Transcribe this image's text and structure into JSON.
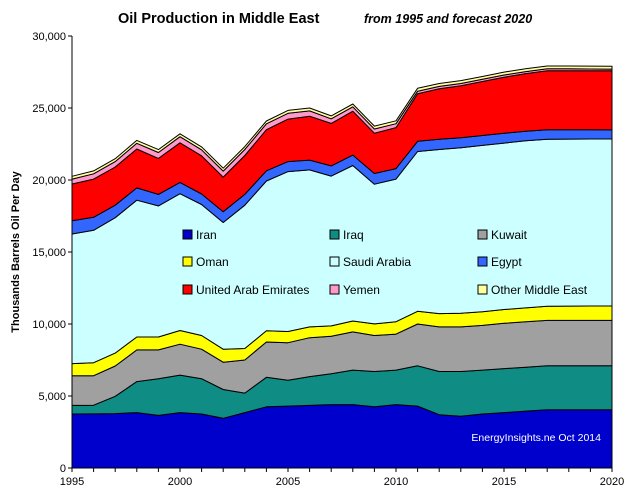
{
  "chart_data": {
    "type": "area",
    "stacked": true,
    "title": "Oil Production  in  Middle  East",
    "subtitle": "from 1995 and forecast 2020",
    "ylabel": "Thousands  Barrels Oil Per Day",
    "xlabel": "",
    "ylim": [
      0,
      30000
    ],
    "xlim": [
      1995,
      2020
    ],
    "yticks": [
      0,
      5000,
      10000,
      15000,
      20000,
      25000,
      30000
    ],
    "ytick_labels": [
      "0",
      "5,000",
      "10,000",
      "15,000",
      "20,000",
      "25,000",
      "30,000"
    ],
    "xticks": [
      1995,
      2000,
      2005,
      2010,
      2015,
      2020
    ],
    "xtick_labels": [
      "1995",
      "2000",
      "2005",
      "2010",
      "2015",
      "2020"
    ],
    "grid": false,
    "legend_position": "inside-center",
    "annotation": "EnergyInsights.ne Oct 2014",
    "x": [
      1995,
      1996,
      1997,
      1998,
      1999,
      2000,
      2001,
      2002,
      2003,
      2004,
      2005,
      2006,
      2007,
      2008,
      2009,
      2010,
      2011,
      2012,
      2013,
      2014,
      2015,
      2016,
      2017,
      2018,
      2019,
      2020
    ],
    "series": [
      {
        "name": "Iran",
        "color": "#0000cc",
        "values": [
          3750,
          3760,
          3780,
          3850,
          3650,
          3850,
          3750,
          3450,
          3850,
          4250,
          4300,
          4350,
          4400,
          4400,
          4250,
          4400,
          4300,
          3700,
          3600,
          3750,
          3850,
          3950,
          4050,
          4050,
          4050,
          4050
        ]
      },
      {
        "name": "Iraq",
        "color": "#0f8c84",
        "values": [
          600,
          600,
          1200,
          2150,
          2550,
          2600,
          2450,
          2000,
          1350,
          2050,
          1800,
          2000,
          2150,
          2400,
          2450,
          2400,
          2800,
          3000,
          3100,
          3050,
          3050,
          3050,
          3050,
          3050,
          3050,
          3050
        ]
      },
      {
        "name": "Kuwait",
        "color": "#a0a0a0",
        "values": [
          2050,
          2050,
          2100,
          2200,
          2000,
          2150,
          2050,
          1900,
          2300,
          2450,
          2600,
          2700,
          2600,
          2650,
          2500,
          2500,
          2900,
          3100,
          3100,
          3100,
          3150,
          3150,
          3150,
          3150,
          3150,
          3150
        ]
      },
      {
        "name": "Oman",
        "color": "#ffff00",
        "values": [
          850,
          900,
          900,
          900,
          900,
          950,
          950,
          900,
          800,
          780,
          780,
          750,
          720,
          760,
          810,
          860,
          880,
          920,
          940,
          950,
          960,
          970,
          980,
          990,
          1000,
          1000
        ]
      },
      {
        "name": "Saudi Arabia",
        "color": "#ccffff",
        "values": [
          9000,
          9200,
          9400,
          9500,
          9100,
          9500,
          9100,
          8800,
          9950,
          10400,
          11100,
          10900,
          10400,
          10800,
          9700,
          9900,
          11100,
          11400,
          11500,
          11550,
          11550,
          11600,
          11600,
          11600,
          11600,
          11600
        ]
      },
      {
        "name": "Egypt",
        "color": "#3366ff",
        "values": [
          920,
          900,
          870,
          850,
          800,
          780,
          730,
          750,
          750,
          710,
          700,
          680,
          710,
          720,
          740,
          730,
          710,
          710,
          700,
          690,
          680,
          670,
          660,
          650,
          640,
          630
        ]
      },
      {
        "name": "United Arab Emirates",
        "color": "#ff0000",
        "values": [
          2550,
          2650,
          2650,
          2700,
          2500,
          2750,
          2650,
          2400,
          2700,
          2850,
          2950,
          3050,
          2950,
          3050,
          2800,
          2850,
          3300,
          3500,
          3600,
          3750,
          3900,
          4000,
          4100,
          4100,
          4100,
          4100
        ]
      },
      {
        "name": "Yemen",
        "color": "#ff99cc",
        "values": [
          340,
          370,
          380,
          400,
          410,
          430,
          420,
          420,
          420,
          410,
          400,
          370,
          320,
          300,
          290,
          270,
          180,
          170,
          160,
          150,
          150,
          140,
          130,
          130,
          120,
          120
        ]
      },
      {
        "name": "Other Middle East",
        "color": "#ffffa0",
        "values": [
          200,
          200,
          200,
          200,
          200,
          200,
          200,
          200,
          200,
          200,
          200,
          200,
          200,
          200,
          200,
          200,
          200,
          200,
          200,
          200,
          200,
          200,
          200,
          200,
          200,
          200
        ]
      }
    ]
  }
}
